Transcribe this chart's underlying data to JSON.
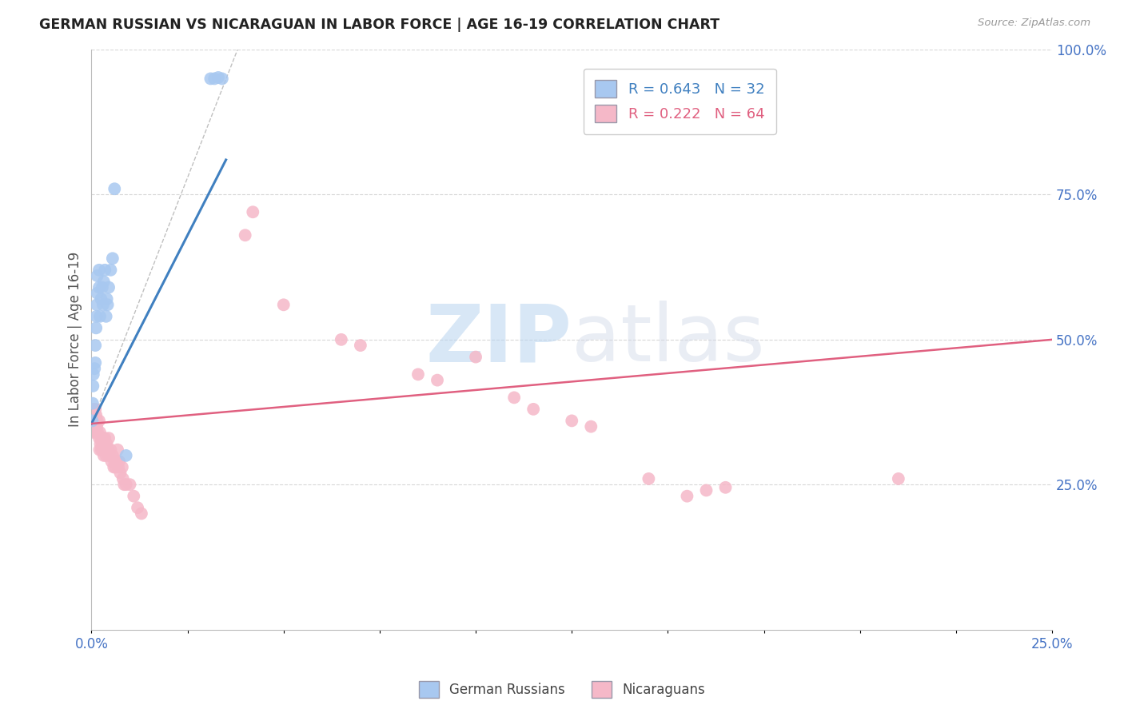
{
  "title": "GERMAN RUSSIAN VS NICARAGUAN IN LABOR FORCE | AGE 16-19 CORRELATION CHART",
  "source": "Source: ZipAtlas.com",
  "ylabel": "In Labor Force | Age 16-19",
  "blue_color": "#a8c8f0",
  "pink_color": "#f5b8c8",
  "blue_line_color": "#4080c0",
  "pink_line_color": "#e06080",
  "watermark_color": "#ddeeff",
  "grid_color": "#d8d8d8",
  "background_color": "#ffffff",
  "xmin": 0.0,
  "xmax": 0.25,
  "ymin": 0.0,
  "ymax": 1.0,
  "blue_scatter": [
    [
      0.0002,
      0.36
    ],
    [
      0.0003,
      0.39
    ],
    [
      0.0004,
      0.42
    ],
    [
      0.0005,
      0.44
    ],
    [
      0.0008,
      0.45
    ],
    [
      0.001,
      0.46
    ],
    [
      0.001,
      0.49
    ],
    [
      0.0012,
      0.52
    ],
    [
      0.0013,
      0.54
    ],
    [
      0.0014,
      0.56
    ],
    [
      0.0015,
      0.58
    ],
    [
      0.0015,
      0.61
    ],
    [
      0.002,
      0.59
    ],
    [
      0.002,
      0.62
    ],
    [
      0.0022,
      0.54
    ],
    [
      0.0025,
      0.57
    ],
    [
      0.0028,
      0.59
    ],
    [
      0.003,
      0.56
    ],
    [
      0.0032,
      0.6
    ],
    [
      0.0035,
      0.62
    ],
    [
      0.0038,
      0.54
    ],
    [
      0.004,
      0.57
    ],
    [
      0.0042,
      0.56
    ],
    [
      0.0045,
      0.59
    ],
    [
      0.005,
      0.62
    ],
    [
      0.0055,
      0.64
    ],
    [
      0.006,
      0.76
    ],
    [
      0.009,
      0.3
    ],
    [
      0.031,
      0.95
    ],
    [
      0.032,
      0.95
    ],
    [
      0.033,
      0.952
    ],
    [
      0.034,
      0.95
    ]
  ],
  "pink_scatter": [
    [
      0.0002,
      0.37
    ],
    [
      0.0003,
      0.35
    ],
    [
      0.0004,
      0.36
    ],
    [
      0.0005,
      0.34
    ],
    [
      0.0006,
      0.38
    ],
    [
      0.0007,
      0.37
    ],
    [
      0.0008,
      0.36
    ],
    [
      0.0009,
      0.35
    ],
    [
      0.001,
      0.38
    ],
    [
      0.0011,
      0.36
    ],
    [
      0.0012,
      0.37
    ],
    [
      0.0013,
      0.34
    ],
    [
      0.0014,
      0.35
    ],
    [
      0.0015,
      0.36
    ],
    [
      0.0016,
      0.34
    ],
    [
      0.002,
      0.33
    ],
    [
      0.002,
      0.36
    ],
    [
      0.0021,
      0.31
    ],
    [
      0.0022,
      0.34
    ],
    [
      0.0023,
      0.32
    ],
    [
      0.0025,
      0.33
    ],
    [
      0.0026,
      0.31
    ],
    [
      0.0028,
      0.32
    ],
    [
      0.003,
      0.31
    ],
    [
      0.003,
      0.33
    ],
    [
      0.0032,
      0.3
    ],
    [
      0.0033,
      0.32
    ],
    [
      0.0035,
      0.33
    ],
    [
      0.0036,
      0.31
    ],
    [
      0.0038,
      0.3
    ],
    [
      0.004,
      0.32
    ],
    [
      0.0042,
      0.31
    ],
    [
      0.0045,
      0.33
    ],
    [
      0.0046,
      0.3
    ],
    [
      0.005,
      0.31
    ],
    [
      0.0052,
      0.29
    ],
    [
      0.0055,
      0.3
    ],
    [
      0.0058,
      0.28
    ],
    [
      0.006,
      0.29
    ],
    [
      0.0062,
      0.28
    ],
    [
      0.0065,
      0.29
    ],
    [
      0.0068,
      0.31
    ],
    [
      0.007,
      0.28
    ],
    [
      0.0072,
      0.29
    ],
    [
      0.0075,
      0.27
    ],
    [
      0.008,
      0.28
    ],
    [
      0.0082,
      0.26
    ],
    [
      0.0085,
      0.25
    ],
    [
      0.009,
      0.25
    ],
    [
      0.01,
      0.25
    ],
    [
      0.011,
      0.23
    ],
    [
      0.012,
      0.21
    ],
    [
      0.013,
      0.2
    ],
    [
      0.04,
      0.68
    ],
    [
      0.042,
      0.72
    ],
    [
      0.05,
      0.56
    ],
    [
      0.065,
      0.5
    ],
    [
      0.07,
      0.49
    ],
    [
      0.085,
      0.44
    ],
    [
      0.09,
      0.43
    ],
    [
      0.1,
      0.47
    ],
    [
      0.11,
      0.4
    ],
    [
      0.115,
      0.38
    ],
    [
      0.125,
      0.36
    ],
    [
      0.13,
      0.35
    ],
    [
      0.145,
      0.26
    ],
    [
      0.155,
      0.23
    ],
    [
      0.16,
      0.24
    ],
    [
      0.165,
      0.245
    ],
    [
      0.21,
      0.26
    ]
  ],
  "blue_line": [
    [
      0.0,
      0.355
    ],
    [
      0.035,
      0.81
    ]
  ],
  "pink_line": [
    [
      0.0,
      0.355
    ],
    [
      0.25,
      0.5
    ]
  ],
  "diag_line": [
    [
      0.0,
      0.355
    ],
    [
      0.038,
      1.0
    ]
  ]
}
